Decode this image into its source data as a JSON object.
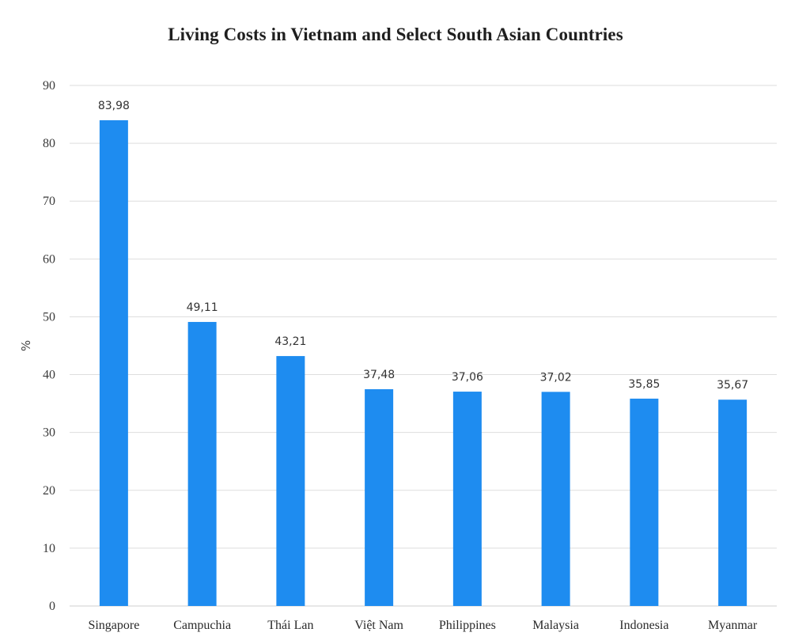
{
  "chart_data": {
    "type": "bar",
    "title": "Living Costs in Vietnam and Select South Asian Countries",
    "xlabel": "",
    "ylabel": "%",
    "ylim": [
      0,
      90
    ],
    "yticks": [
      "0",
      "10",
      "20",
      "30",
      "40",
      "50",
      "60",
      "70",
      "80",
      "90"
    ],
    "grid": true,
    "bar_color": "#1e8cf0",
    "categories": [
      "Singapore",
      "Campuchia",
      "Thái Lan",
      "Việt Nam",
      "Philippines",
      "Malaysia",
      "Indonesia",
      "Myanmar"
    ],
    "values": [
      83.98,
      49.11,
      43.21,
      37.48,
      37.06,
      37.02,
      35.85,
      35.67
    ],
    "data_labels": [
      "83,98",
      "49,11",
      "43,21",
      "37,48",
      "37,06",
      "37,02",
      "35,85",
      "35,67"
    ]
  }
}
